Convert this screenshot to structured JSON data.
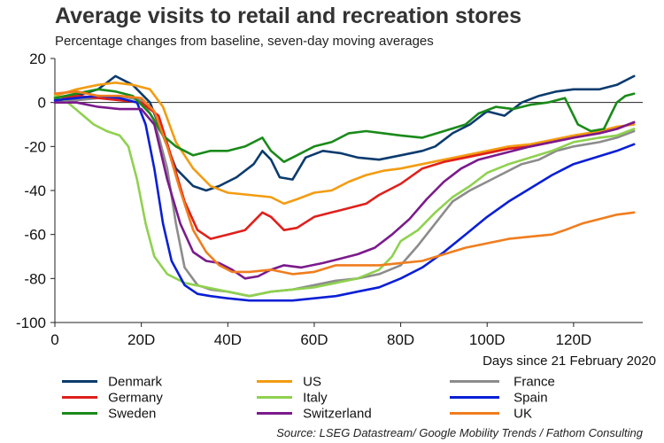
{
  "chart_data": {
    "type": "line",
    "title": "Average visits to retail and recreation stores",
    "subtitle": "Percentage changes from baseline, seven-day moving averages",
    "xlabel": "Days since 21 February 2020",
    "ylabel": "",
    "xlim": [
      0,
      136
    ],
    "ylim": [
      -100,
      20
    ],
    "yticks": [
      20,
      0,
      -20,
      -40,
      -60,
      -80,
      -100
    ],
    "xticks": [
      0,
      20,
      40,
      60,
      80,
      100,
      120
    ],
    "xtick_labels": [
      "0",
      "20D",
      "40D",
      "60D",
      "80D",
      "100D",
      "120D"
    ],
    "source": "Source: LSEG Datastream/ Google Mobility Trends / Fathom Consulting",
    "series": [
      {
        "name": "Denmark",
        "color": "#0b3b6e",
        "points": [
          [
            0,
            0
          ],
          [
            5,
            3
          ],
          [
            10,
            6
          ],
          [
            14,
            12
          ],
          [
            18,
            8
          ],
          [
            22,
            0
          ],
          [
            25,
            -15
          ],
          [
            28,
            -30
          ],
          [
            32,
            -38
          ],
          [
            35,
            -40
          ],
          [
            38,
            -38
          ],
          [
            42,
            -34
          ],
          [
            46,
            -28
          ],
          [
            48,
            -22
          ],
          [
            50,
            -26
          ],
          [
            52,
            -34
          ],
          [
            55,
            -35
          ],
          [
            58,
            -25
          ],
          [
            62,
            -22
          ],
          [
            66,
            -23
          ],
          [
            70,
            -25
          ],
          [
            75,
            -26
          ],
          [
            80,
            -24
          ],
          [
            85,
            -22
          ],
          [
            88,
            -20
          ],
          [
            92,
            -14
          ],
          [
            96,
            -10
          ],
          [
            100,
            -4
          ],
          [
            104,
            -6
          ],
          [
            108,
            0
          ],
          [
            112,
            3
          ],
          [
            116,
            5
          ],
          [
            120,
            6
          ],
          [
            126,
            6
          ],
          [
            130,
            8
          ],
          [
            134,
            12
          ]
        ]
      },
      {
        "name": "US",
        "color": "#f39c12",
        "points": [
          [
            0,
            3
          ],
          [
            5,
            6
          ],
          [
            10,
            8
          ],
          [
            14,
            9
          ],
          [
            18,
            8
          ],
          [
            22,
            6
          ],
          [
            25,
            -2
          ],
          [
            28,
            -18
          ],
          [
            32,
            -30
          ],
          [
            36,
            -38
          ],
          [
            40,
            -41
          ],
          [
            45,
            -42
          ],
          [
            50,
            -43
          ],
          [
            53,
            -46
          ],
          [
            56,
            -44
          ],
          [
            60,
            -41
          ],
          [
            64,
            -40
          ],
          [
            68,
            -36
          ],
          [
            72,
            -33
          ],
          [
            76,
            -31
          ],
          [
            80,
            -30
          ],
          [
            85,
            -28
          ],
          [
            90,
            -26
          ],
          [
            95,
            -24
          ],
          [
            100,
            -22
          ],
          [
            105,
            -20
          ],
          [
            110,
            -19
          ],
          [
            115,
            -17
          ],
          [
            120,
            -15
          ],
          [
            126,
            -13
          ],
          [
            130,
            -11
          ],
          [
            134,
            -10
          ]
        ]
      },
      {
        "name": "France",
        "color": "#8c8c8c",
        "points": [
          [
            0,
            0
          ],
          [
            5,
            1
          ],
          [
            10,
            2
          ],
          [
            15,
            3
          ],
          [
            20,
            1
          ],
          [
            23,
            -8
          ],
          [
            26,
            -30
          ],
          [
            28,
            -55
          ],
          [
            30,
            -75
          ],
          [
            33,
            -83
          ],
          [
            36,
            -85
          ],
          [
            40,
            -86
          ],
          [
            45,
            -88
          ],
          [
            50,
            -86
          ],
          [
            55,
            -85
          ],
          [
            60,
            -83
          ],
          [
            65,
            -81
          ],
          [
            70,
            -80
          ],
          [
            75,
            -78
          ],
          [
            80,
            -74
          ],
          [
            84,
            -65
          ],
          [
            88,
            -55
          ],
          [
            92,
            -45
          ],
          [
            96,
            -40
          ],
          [
            100,
            -36
          ],
          [
            104,
            -32
          ],
          [
            108,
            -28
          ],
          [
            112,
            -26
          ],
          [
            116,
            -22
          ],
          [
            120,
            -20
          ],
          [
            126,
            -18
          ],
          [
            130,
            -16
          ],
          [
            134,
            -13
          ]
        ]
      },
      {
        "name": "Germany",
        "color": "#e0201b",
        "points": [
          [
            0,
            2
          ],
          [
            5,
            3
          ],
          [
            10,
            2
          ],
          [
            15,
            1
          ],
          [
            20,
            0
          ],
          [
            24,
            -6
          ],
          [
            27,
            -25
          ],
          [
            30,
            -45
          ],
          [
            33,
            -58
          ],
          [
            36,
            -62
          ],
          [
            40,
            -60
          ],
          [
            44,
            -58
          ],
          [
            48,
            -50
          ],
          [
            50,
            -52
          ],
          [
            53,
            -58
          ],
          [
            56,
            -57
          ],
          [
            60,
            -52
          ],
          [
            64,
            -50
          ],
          [
            68,
            -48
          ],
          [
            72,
            -46
          ],
          [
            75,
            -42
          ],
          [
            80,
            -37
          ],
          [
            85,
            -30
          ],
          [
            90,
            -27
          ],
          [
            95,
            -25
          ],
          [
            100,
            -23
          ],
          [
            105,
            -21
          ],
          [
            110,
            -20
          ],
          [
            115,
            -18
          ],
          [
            120,
            -16
          ],
          [
            126,
            -14
          ],
          [
            130,
            -12
          ],
          [
            134,
            -9
          ]
        ]
      },
      {
        "name": "Italy",
        "color": "#8fd14f",
        "points": [
          [
            0,
            3
          ],
          [
            3,
            0
          ],
          [
            6,
            -5
          ],
          [
            9,
            -10
          ],
          [
            12,
            -13
          ],
          [
            15,
            -15
          ],
          [
            17,
            -20
          ],
          [
            19,
            -35
          ],
          [
            21,
            -55
          ],
          [
            23,
            -70
          ],
          [
            26,
            -78
          ],
          [
            30,
            -82
          ],
          [
            35,
            -84
          ],
          [
            40,
            -86
          ],
          [
            45,
            -88
          ],
          [
            50,
            -86
          ],
          [
            55,
            -85
          ],
          [
            60,
            -84
          ],
          [
            65,
            -82
          ],
          [
            70,
            -80
          ],
          [
            75,
            -76
          ],
          [
            78,
            -70
          ],
          [
            80,
            -63
          ],
          [
            84,
            -58
          ],
          [
            88,
            -50
          ],
          [
            92,
            -43
          ],
          [
            96,
            -38
          ],
          [
            100,
            -32
          ],
          [
            105,
            -28
          ],
          [
            110,
            -25
          ],
          [
            115,
            -22
          ],
          [
            120,
            -18
          ],
          [
            126,
            -16
          ],
          [
            130,
            -15
          ],
          [
            134,
            -12
          ]
        ]
      },
      {
        "name": "Spain",
        "color": "#0a1fd6",
        "points": [
          [
            0,
            1
          ],
          [
            5,
            2
          ],
          [
            10,
            3
          ],
          [
            15,
            2
          ],
          [
            19,
            0
          ],
          [
            21,
            -10
          ],
          [
            23,
            -30
          ],
          [
            25,
            -55
          ],
          [
            27,
            -72
          ],
          [
            30,
            -83
          ],
          [
            33,
            -87
          ],
          [
            36,
            -88
          ],
          [
            40,
            -89
          ],
          [
            45,
            -90
          ],
          [
            50,
            -90
          ],
          [
            55,
            -90
          ],
          [
            60,
            -89
          ],
          [
            65,
            -88
          ],
          [
            70,
            -86
          ],
          [
            75,
            -84
          ],
          [
            80,
            -80
          ],
          [
            85,
            -75
          ],
          [
            90,
            -68
          ],
          [
            95,
            -60
          ],
          [
            100,
            -52
          ],
          [
            105,
            -45
          ],
          [
            110,
            -39
          ],
          [
            115,
            -33
          ],
          [
            120,
            -28
          ],
          [
            125,
            -25
          ],
          [
            130,
            -22
          ],
          [
            134,
            -19
          ]
        ]
      },
      {
        "name": "Sweden",
        "color": "#1a8a1a",
        "points": [
          [
            0,
            2
          ],
          [
            5,
            4
          ],
          [
            10,
            6
          ],
          [
            14,
            5
          ],
          [
            18,
            3
          ],
          [
            22,
            -5
          ],
          [
            25,
            -15
          ],
          [
            28,
            -20
          ],
          [
            32,
            -24
          ],
          [
            36,
            -22
          ],
          [
            40,
            -22
          ],
          [
            44,
            -20
          ],
          [
            48,
            -16
          ],
          [
            50,
            -22
          ],
          [
            53,
            -27
          ],
          [
            56,
            -24
          ],
          [
            60,
            -20
          ],
          [
            64,
            -18
          ],
          [
            68,
            -14
          ],
          [
            72,
            -13
          ],
          [
            76,
            -14
          ],
          [
            80,
            -15
          ],
          [
            85,
            -16
          ],
          [
            90,
            -13
          ],
          [
            95,
            -10
          ],
          [
            98,
            -5
          ],
          [
            102,
            -2
          ],
          [
            106,
            -3
          ],
          [
            110,
            -1
          ],
          [
            114,
            0
          ],
          [
            118,
            2
          ],
          [
            121,
            -10
          ],
          [
            124,
            -13
          ],
          [
            127,
            -12
          ],
          [
            130,
            0
          ],
          [
            132,
            3
          ],
          [
            134,
            4
          ]
        ]
      },
      {
        "name": "Switzerland",
        "color": "#7b1a8c",
        "points": [
          [
            0,
            0
          ],
          [
            5,
            0
          ],
          [
            10,
            -2
          ],
          [
            15,
            -3
          ],
          [
            20,
            -3
          ],
          [
            23,
            -10
          ],
          [
            26,
            -35
          ],
          [
            29,
            -55
          ],
          [
            32,
            -68
          ],
          [
            35,
            -72
          ],
          [
            38,
            -73
          ],
          [
            41,
            -76
          ],
          [
            44,
            -80
          ],
          [
            47,
            -79
          ],
          [
            50,
            -76
          ],
          [
            53,
            -74
          ],
          [
            57,
            -75
          ],
          [
            62,
            -73
          ],
          [
            66,
            -71
          ],
          [
            70,
            -69
          ],
          [
            74,
            -66
          ],
          [
            78,
            -60
          ],
          [
            82,
            -53
          ],
          [
            86,
            -44
          ],
          [
            90,
            -36
          ],
          [
            94,
            -30
          ],
          [
            98,
            -26
          ],
          [
            102,
            -24
          ],
          [
            106,
            -22
          ],
          [
            110,
            -20
          ],
          [
            115,
            -18
          ],
          [
            120,
            -16
          ],
          [
            126,
            -14
          ],
          [
            130,
            -12
          ],
          [
            134,
            -9
          ]
        ]
      },
      {
        "name": "UK",
        "color": "#f07d1e",
        "points": [
          [
            0,
            4
          ],
          [
            5,
            5
          ],
          [
            10,
            3
          ],
          [
            15,
            3
          ],
          [
            20,
            2
          ],
          [
            23,
            -4
          ],
          [
            26,
            -20
          ],
          [
            29,
            -40
          ],
          [
            32,
            -58
          ],
          [
            35,
            -68
          ],
          [
            38,
            -74
          ],
          [
            41,
            -77
          ],
          [
            45,
            -77
          ],
          [
            50,
            -76
          ],
          [
            55,
            -78
          ],
          [
            60,
            -77
          ],
          [
            65,
            -74
          ],
          [
            70,
            -74
          ],
          [
            75,
            -74
          ],
          [
            80,
            -73
          ],
          [
            85,
            -72
          ],
          [
            90,
            -69
          ],
          [
            95,
            -66
          ],
          [
            100,
            -64
          ],
          [
            105,
            -62
          ],
          [
            110,
            -61
          ],
          [
            115,
            -60
          ],
          [
            118,
            -58
          ],
          [
            122,
            -55
          ],
          [
            126,
            -53
          ],
          [
            130,
            -51
          ],
          [
            134,
            -50
          ]
        ]
      }
    ]
  },
  "legend_order": [
    "Denmark",
    "US",
    "France",
    "Germany",
    "Italy",
    "Spain",
    "Sweden",
    "Switzerland",
    "UK"
  ]
}
